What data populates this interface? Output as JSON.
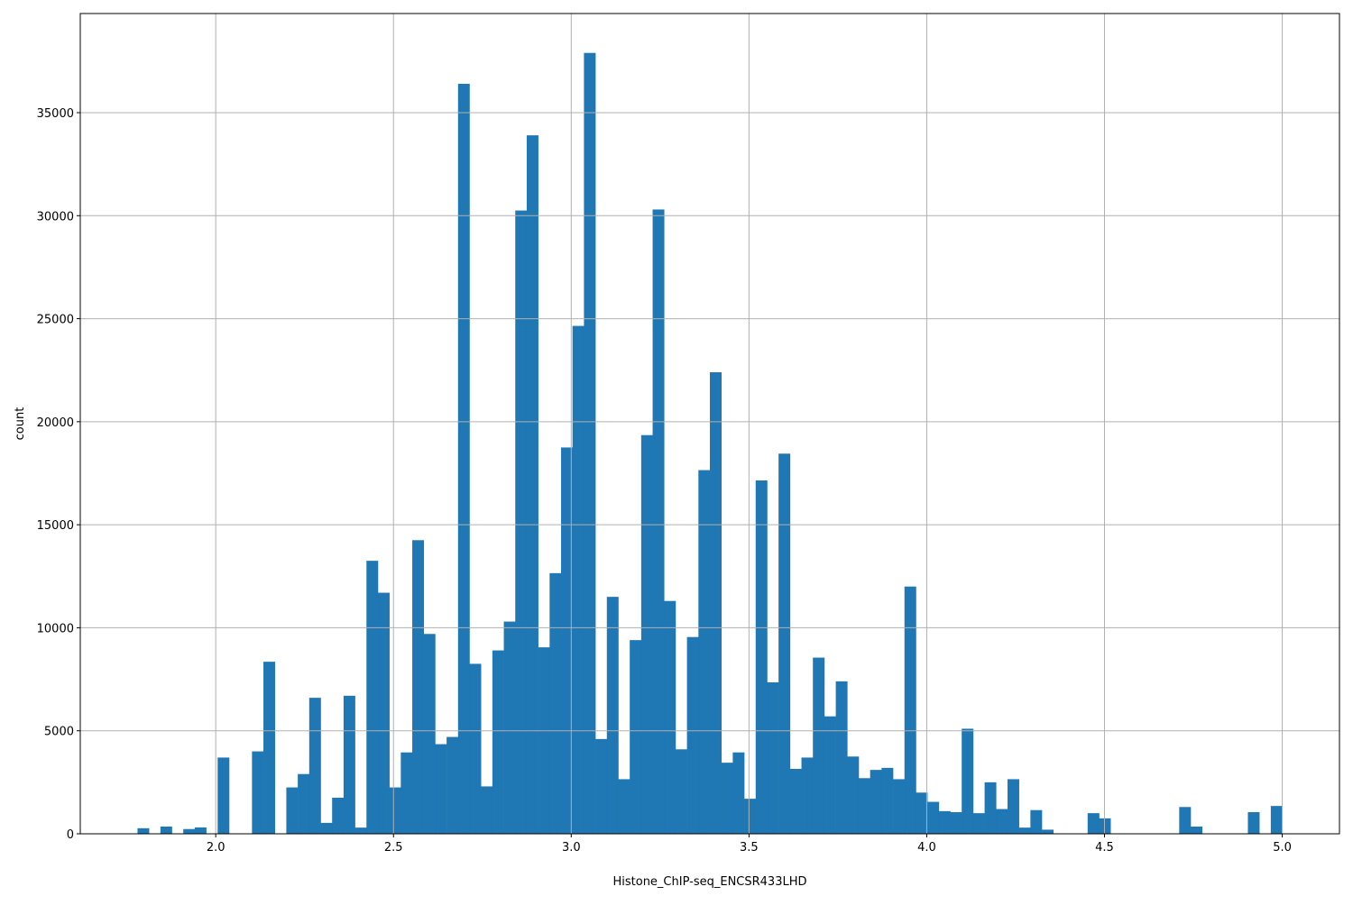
{
  "chart_data": {
    "type": "bar",
    "subtype": "histogram",
    "title": "",
    "xlabel": "Histone_ChIP-seq_ENCSR433LHD",
    "ylabel": "count",
    "xlim": [
      1.619,
      5.161
    ],
    "ylim": [
      0,
      39812
    ],
    "grid": true,
    "bar_color": "#1f77b4",
    "grid_color": "#b0b0b0",
    "bin_range": [
      1.78,
      5.0
    ],
    "bin_count": 100,
    "xticks": [
      "2.0",
      "2.5",
      "3.0",
      "3.5",
      "4.0",
      "4.5",
      "5.0"
    ],
    "yticks": [
      "0",
      "5000",
      "10000",
      "15000",
      "20000",
      "25000",
      "30000",
      "35000"
    ],
    "values": [
      270,
      0,
      350,
      0,
      230,
      310,
      0,
      3700,
      0,
      0,
      4000,
      8350,
      0,
      2250,
      2900,
      6600,
      530,
      1750,
      6700,
      300,
      13250,
      11700,
      2250,
      3950,
      14250,
      9700,
      4350,
      4700,
      36400,
      8250,
      2300,
      8900,
      10300,
      30250,
      33900,
      9050,
      12650,
      18750,
      24650,
      37900,
      4600,
      11500,
      2650,
      9400,
      19350,
      30300,
      11300,
      4100,
      9550,
      17650,
      22400,
      3450,
      3950,
      1700,
      17150,
      7350,
      18450,
      3150,
      3700,
      8550,
      5700,
      7400,
      3750,
      2700,
      3100,
      3200,
      2650,
      12000,
      2000,
      1550,
      1100,
      1050,
      5100,
      1000,
      2500,
      1200,
      2650,
      300,
      1150,
      200,
      0,
      0,
      0,
      1000,
      750,
      0,
      0,
      0,
      0,
      0,
      0,
      1300,
      350,
      0,
      0,
      0,
      0,
      1050,
      0,
      1350
    ]
  }
}
